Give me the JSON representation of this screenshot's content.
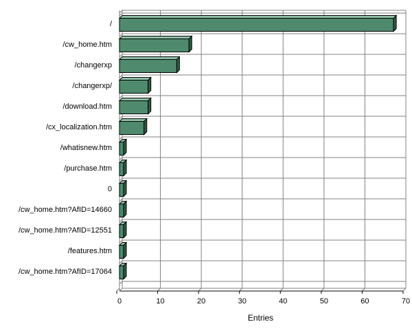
{
  "chart_data": {
    "type": "bar",
    "orientation": "horizontal",
    "categories": [
      "/",
      "/cw_home.htm",
      "/changerxp",
      "/changerxp/",
      "/download.htm",
      "/cx_localization.htm",
      "/whatisnew.htm",
      "/purchase.htm",
      "0",
      "/cw_home.htm?AfID=14660",
      "/cw_home.htm?AfID=12551",
      "/features.htm",
      "/cw_home.htm?AfID=17064"
    ],
    "values": [
      67,
      17,
      14,
      7,
      7,
      6,
      1,
      1,
      1,
      1,
      1,
      1,
      1
    ],
    "title": "",
    "xlabel": "Entries",
    "ylabel": "",
    "xlim": [
      0,
      70
    ],
    "xticks": [
      0,
      10,
      20,
      30,
      40,
      50,
      60,
      70
    ],
    "grid": true,
    "style": "3d",
    "colors": {
      "bar_front": "#4f8a6e",
      "bar_top": "#8fbfa6",
      "bar_side": "#2f5d46",
      "bar_edge": "#000000",
      "grid": "#808080"
    }
  }
}
